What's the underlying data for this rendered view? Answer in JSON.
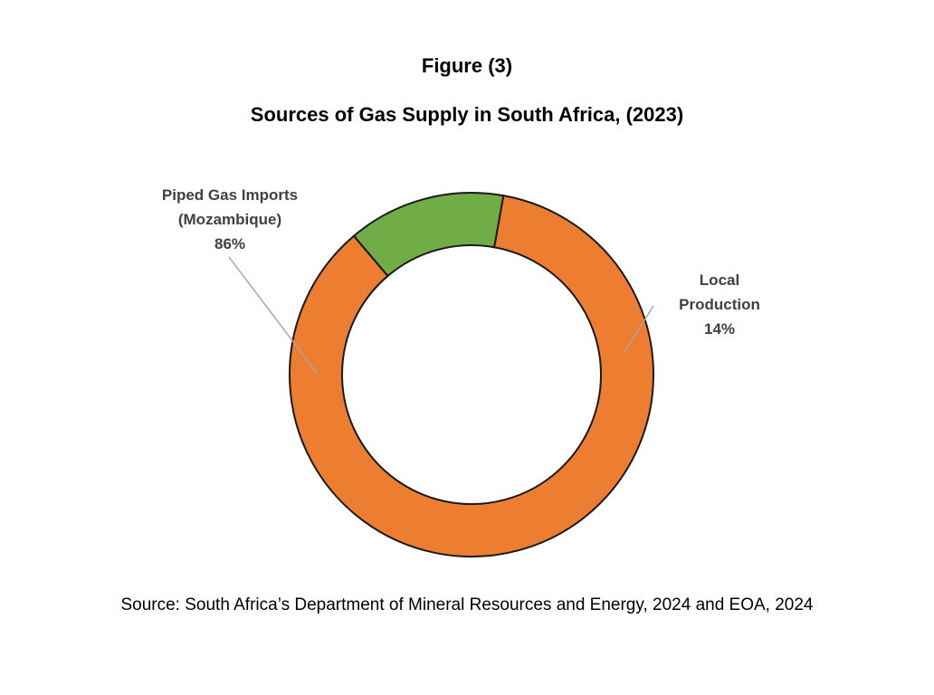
{
  "figure_label": "Figure (3)",
  "title": "Sources of Gas Supply in South Africa, (2023)",
  "source": "Source: South Africa’s Department of Mineral Resources and Energy, 2024 and EOA, 2024",
  "chart_data": {
    "type": "pie",
    "style": "donut",
    "title": "Sources of Gas Supply in South Africa, (2023)",
    "categories": [
      "Piped Gas Imports (Mozambique)",
      "Local Production"
    ],
    "values": [
      86,
      14
    ],
    "unit": "%",
    "colors": [
      "#ED7D31",
      "#70AD47"
    ],
    "labels": [
      {
        "lines": [
          "Piped Gas Imports",
          "(Mozambique)",
          "86%"
        ]
      },
      {
        "lines": [
          "Local",
          "Production",
          "14%"
        ]
      }
    ]
  }
}
